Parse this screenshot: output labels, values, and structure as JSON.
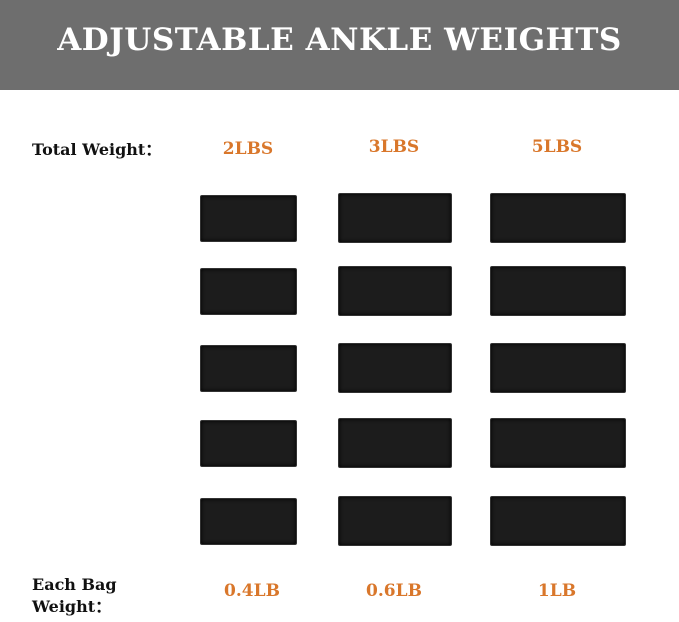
{
  "title": "ADJUSTABLE ANKLE WEIGHTS",
  "total_weight_label": "Total Weight：",
  "each_bag_label_line1": "Each Bag",
  "each_bag_label_line2": "Weight：",
  "columns": [
    {
      "total": "2LBS",
      "each": "0.4LB",
      "bag_count": 5
    },
    {
      "total": "3LBS",
      "each": "0.6LB",
      "bag_count": 5
    },
    {
      "total": "5LBS",
      "each": "1LB",
      "bag_count": 5
    }
  ],
  "colors": {
    "header_bg": "#6e6e6e",
    "accent": "#d9772b",
    "bag": "#1c1c1c"
  }
}
